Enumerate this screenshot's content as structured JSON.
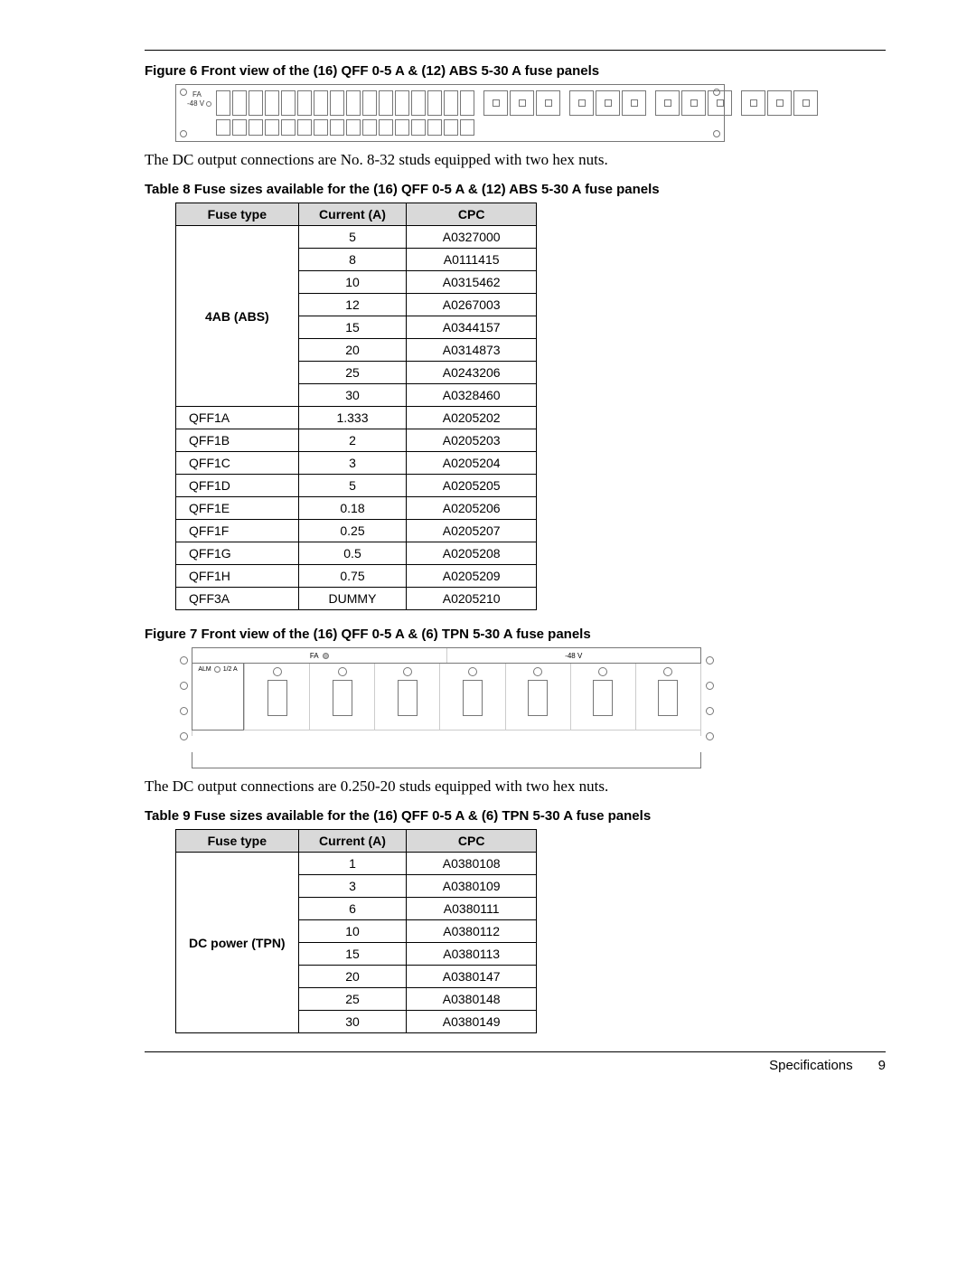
{
  "fig6": {
    "caption": "Figure 6    Front view of the (16) QFF 0-5 A & (12) ABS 5-30 A fuse panels",
    "label_fa": "FA",
    "label_48v": "-48 V",
    "qff_slot_count": 16,
    "abs_slot_count": 12,
    "bottom_slot_count": 16
  },
  "text1": "The DC output connections are No. 8-32 studs equipped with two hex nuts.",
  "table8": {
    "caption": "Table 8       Fuse sizes available for the (16) QFF 0-5 A & (12) ABS 5-30 A fuse panels",
    "columns": [
      "Fuse type",
      "Current (A)",
      "CPC"
    ],
    "group": {
      "label": "4AB (ABS)",
      "rows": [
        [
          "5",
          "A0327000"
        ],
        [
          "8",
          "A0111415"
        ],
        [
          "10",
          "A0315462"
        ],
        [
          "12",
          "A0267003"
        ],
        [
          "15",
          "A0344157"
        ],
        [
          "20",
          "A0314873"
        ],
        [
          "25",
          "A0243206"
        ],
        [
          "30",
          "A0328460"
        ]
      ]
    },
    "rows": [
      [
        "QFF1A",
        "1.333",
        "A0205202"
      ],
      [
        "QFF1B",
        "2",
        "A0205203"
      ],
      [
        "QFF1C",
        "3",
        "A0205204"
      ],
      [
        "QFF1D",
        "5",
        "A0205205"
      ],
      [
        "QFF1E",
        "0.18",
        "A0205206"
      ],
      [
        "QFF1F",
        "0.25",
        "A0205207"
      ],
      [
        "QFF1G",
        "0.5",
        "A0205208"
      ],
      [
        "QFF1H",
        "0.75",
        "A0205209"
      ],
      [
        "QFF3A",
        "DUMMY",
        "A0205210"
      ]
    ]
  },
  "fig7": {
    "caption": "Figure 7    Front view of the (16) QFF 0-5 A & (6) TPN 5-30 A fuse panels",
    "label_fa": "FA",
    "label_48v": "-48 V",
    "label_alm": "ALM",
    "label_alm_rating": "1/2 A",
    "tpn_count": 7
  },
  "text2": "The DC output connections are 0.250-20 studs equipped with two hex nuts.",
  "table9": {
    "caption": "Table 9       Fuse sizes available for the (16) QFF 0-5 A & (6) TPN 5-30 A fuse panels",
    "columns": [
      "Fuse type",
      "Current (A)",
      "CPC"
    ],
    "group": {
      "label": "DC power (TPN)",
      "rows": [
        [
          "1",
          "A0380108"
        ],
        [
          "3",
          "A0380109"
        ],
        [
          "6",
          "A0380111"
        ],
        [
          "10",
          "A0380112"
        ],
        [
          "15",
          "A0380113"
        ],
        [
          "20",
          "A0380147"
        ],
        [
          "25",
          "A0380148"
        ],
        [
          "30",
          "A0380149"
        ]
      ]
    }
  },
  "footer": {
    "section": "Specifications",
    "page": "9"
  }
}
